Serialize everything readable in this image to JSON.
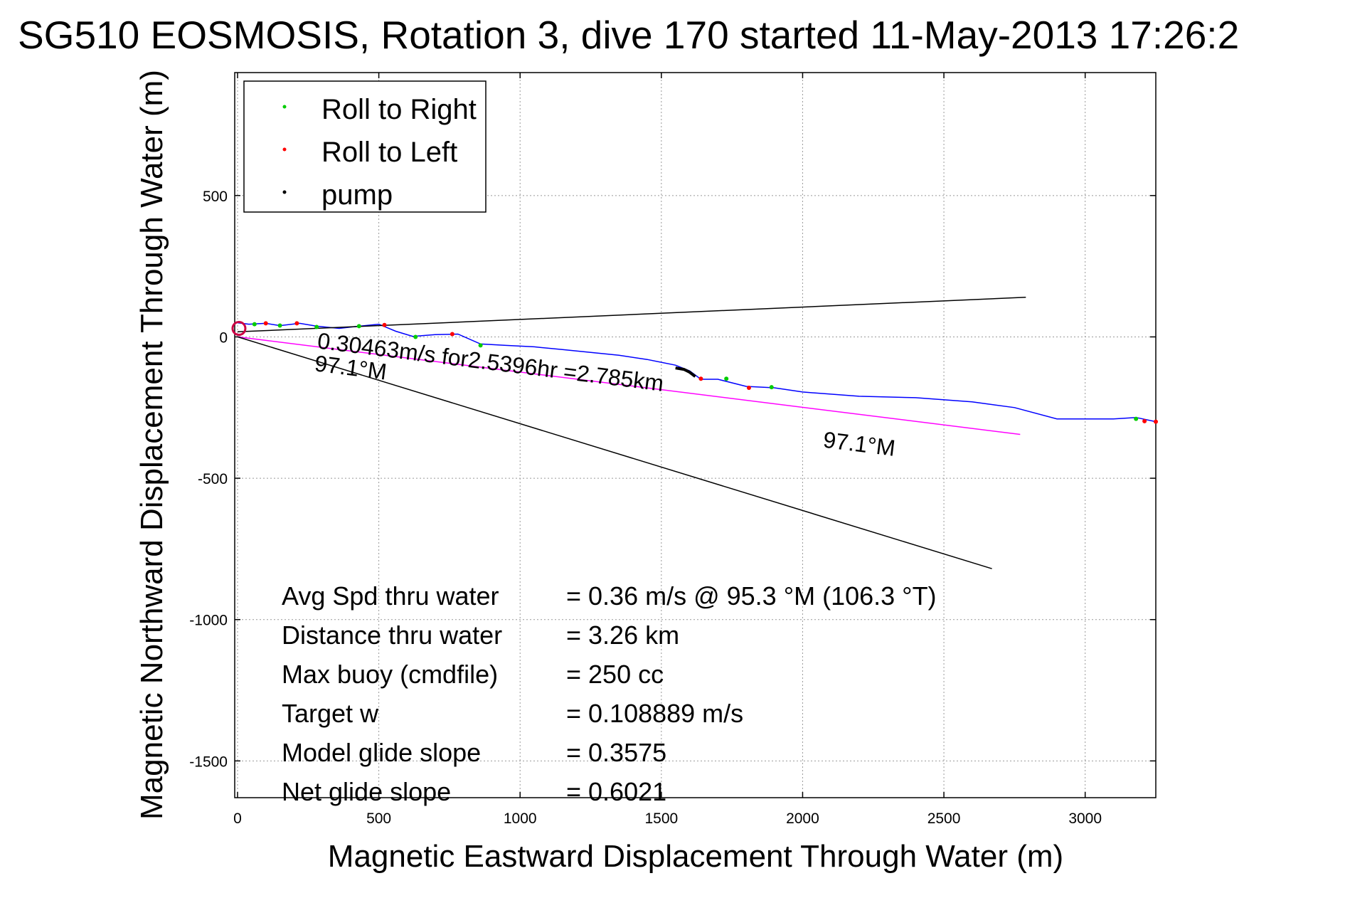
{
  "chart_data": {
    "type": "line",
    "title": "SG510 EOSMOSIS, Rotation 3, dive 170 started 11-May-2013 17:26:2",
    "xlabel": "Magnetic Eastward Displacement Through Water (m)",
    "ylabel": "Magnetic Northward Displacement Through Water (m)",
    "xlim": [
      -10,
      3250
    ],
    "ylim": [
      -1630,
      935
    ],
    "xticks": [
      0,
      500,
      1000,
      1500,
      2000,
      2500,
      3000
    ],
    "yticks": [
      -1500,
      -1000,
      -500,
      0,
      500
    ],
    "grid": true,
    "legend_position": "top-left",
    "legend": [
      {
        "label": "Roll to Right",
        "color": "#00cc00"
      },
      {
        "label": "Roll to Left",
        "color": "#ff0000"
      },
      {
        "label": "pump",
        "color": "#000000"
      }
    ],
    "series": [
      {
        "name": "track",
        "color": "#0000ff",
        "x": [
          0,
          40,
          100,
          150,
          220,
          280,
          360,
          430,
          500,
          560,
          620,
          700,
          780,
          860,
          950,
          1050,
          1150,
          1250,
          1350,
          1450,
          1550,
          1600,
          1640,
          1700,
          1800,
          1900,
          2000,
          2200,
          2400,
          2600,
          2750,
          2900,
          3000,
          3100,
          3180,
          3250
        ],
        "y": [
          50,
          45,
          48,
          40,
          48,
          38,
          30,
          38,
          45,
          20,
          2,
          8,
          10,
          -25,
          -30,
          -35,
          -45,
          -55,
          -65,
          -80,
          -100,
          -120,
          -150,
          -150,
          -175,
          -180,
          -195,
          -210,
          -215,
          -230,
          -250,
          -290,
          -290,
          -290,
          -285,
          -300
        ]
      },
      {
        "name": "Roll to Right",
        "color": "#00cc00",
        "x": [
          60,
          150,
          280,
          430,
          630,
          860,
          1730,
          1890,
          3180
        ],
        "y": [
          45,
          40,
          35,
          38,
          0,
          -30,
          -148,
          -178,
          -290
        ]
      },
      {
        "name": "Roll to Left",
        "color": "#ff0000",
        "x": [
          100,
          210,
          520,
          760,
          1640,
          1810,
          3210,
          3250
        ],
        "y": [
          48,
          48,
          42,
          10,
          -148,
          -180,
          -298,
          -300
        ]
      },
      {
        "name": "pump",
        "color": "#000000",
        "x": [
          1550,
          1580,
          1600,
          1620
        ],
        "y": [
          -110,
          -115,
          -125,
          -140
        ]
      },
      {
        "name": "heading 97.1 M",
        "color": "#ff00ff",
        "x": [
          0,
          2770
        ],
        "y": [
          0,
          -345
        ]
      },
      {
        "name": "reference upper",
        "color": "#000000",
        "x": [
          0,
          2790
        ],
        "y": [
          18,
          140
        ]
      },
      {
        "name": "reference lower",
        "color": "#000000",
        "x": [
          0,
          2670
        ],
        "y": [
          0,
          -820
        ]
      }
    ],
    "annotations": [
      {
        "text": "0.30463m/s for2.5396hr =2.785km",
        "x": 280,
        "y": -40,
        "rotate": 7.1
      },
      {
        "text": "97.1°M",
        "x": 270,
        "y": -120,
        "rotate": 7.1
      },
      {
        "text": "97.1°M",
        "x": 2070,
        "y": -390,
        "rotate": 7.1
      }
    ],
    "stats": [
      {
        "label": "Avg Spd thru water",
        "value": "=  0.36 m/s @  95.3 °M (106.3 °T)"
      },
      {
        "label": "Distance thru water",
        "value": "=  3.26 km"
      },
      {
        "label": "Max buoy (cmdfile)",
        "value": "= 250 cc"
      },
      {
        "label": "Target w",
        "value": "= 0.108889 m/s"
      },
      {
        "label": "Model glide slope",
        "value": "= 0.3575"
      },
      {
        "label": "Net glide slope",
        "value": "= 0.6021"
      }
    ]
  }
}
